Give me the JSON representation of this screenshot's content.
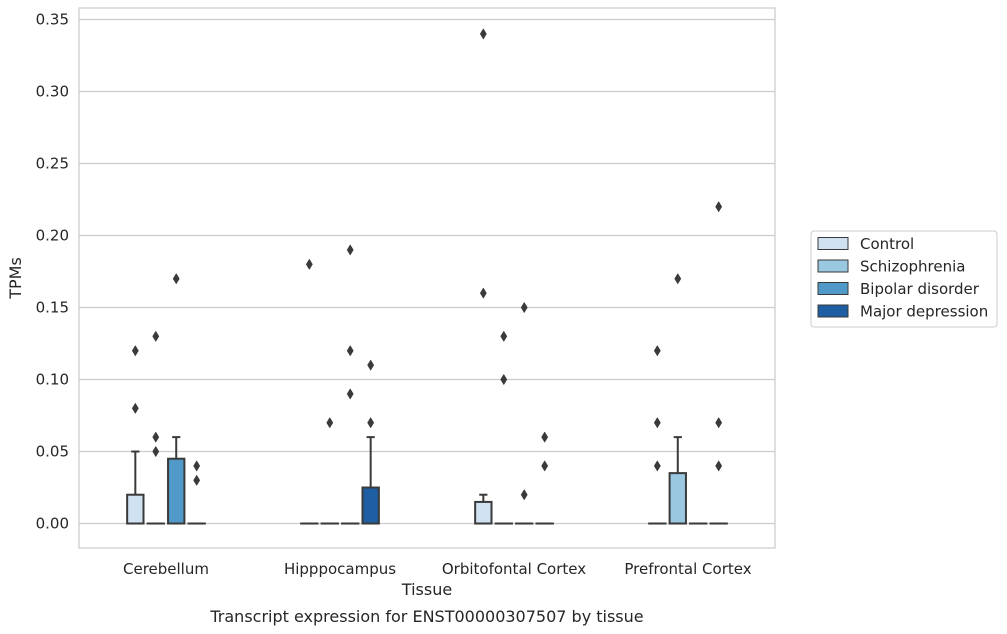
{
  "chart_data": {
    "type": "box",
    "xlabel": "Tissue",
    "ylabel": "TPMs",
    "caption": "Transcript expression for ENST00000307507 by tissue",
    "ylim": [
      -0.017,
      0.358
    ],
    "yticks": [
      "0.00",
      "0.05",
      "0.10",
      "0.15",
      "0.20",
      "0.25",
      "0.30",
      "0.35"
    ],
    "grid": "horizontal",
    "legend_placement": "right",
    "categories": [
      "Cerebellum",
      "Hipppocampus",
      "Orbitofontal Cortex",
      "Prefrontal Cortex"
    ],
    "series": [
      {
        "name": "Control",
        "color": "#d0e1f2",
        "boxes": [
          {
            "q1": 0.0,
            "median": 0.0,
            "q3": 0.02,
            "whisker_low": 0.0,
            "whisker_high": 0.05,
            "outliers": [
              0.08,
              0.12
            ]
          },
          {
            "q1": 0.0,
            "median": 0.0,
            "q3": 0.0,
            "whisker_low": 0.0,
            "whisker_high": 0.0,
            "outliers": [
              0.18
            ]
          },
          {
            "q1": 0.0,
            "median": 0.0,
            "q3": 0.015,
            "whisker_low": 0.0,
            "whisker_high": 0.02,
            "outliers": [
              0.16,
              0.34
            ]
          },
          {
            "q1": 0.0,
            "median": 0.0,
            "q3": 0.0,
            "whisker_low": 0.0,
            "whisker_high": 0.0,
            "outliers": [
              0.04,
              0.07,
              0.12
            ]
          }
        ]
      },
      {
        "name": "Schizophrenia",
        "color": "#9ac8e0",
        "boxes": [
          {
            "q1": 0.0,
            "median": 0.0,
            "q3": 0.0,
            "whisker_low": 0.0,
            "whisker_high": 0.0,
            "outliers": [
              0.05,
              0.06,
              0.13
            ]
          },
          {
            "q1": 0.0,
            "median": 0.0,
            "q3": 0.0,
            "whisker_low": 0.0,
            "whisker_high": 0.0,
            "outliers": [
              0.07
            ]
          },
          {
            "q1": 0.0,
            "median": 0.0,
            "q3": 0.0,
            "whisker_low": 0.0,
            "whisker_high": 0.0,
            "outliers": [
              0.1,
              0.13
            ]
          },
          {
            "q1": 0.0,
            "median": 0.0,
            "q3": 0.035,
            "whisker_low": 0.0,
            "whisker_high": 0.06,
            "outliers": [
              0.17
            ]
          }
        ]
      },
      {
        "name": "Bipolar disorder",
        "color": "#5199c8",
        "boxes": [
          {
            "q1": 0.0,
            "median": 0.0,
            "q3": 0.045,
            "whisker_low": 0.0,
            "whisker_high": 0.06,
            "outliers": [
              0.17
            ]
          },
          {
            "q1": 0.0,
            "median": 0.0,
            "q3": 0.0,
            "whisker_low": 0.0,
            "whisker_high": 0.0,
            "outliers": [
              0.09,
              0.12,
              0.19
            ]
          },
          {
            "q1": 0.0,
            "median": 0.0,
            "q3": 0.0,
            "whisker_low": 0.0,
            "whisker_high": 0.0,
            "outliers": [
              0.02,
              0.15
            ]
          },
          {
            "q1": 0.0,
            "median": 0.0,
            "q3": 0.0,
            "whisker_low": 0.0,
            "whisker_high": 0.0,
            "outliers": []
          }
        ]
      },
      {
        "name": "Major depression",
        "color": "#1e5fa3",
        "boxes": [
          {
            "q1": 0.0,
            "median": 0.0,
            "q3": 0.0,
            "whisker_low": 0.0,
            "whisker_high": 0.0,
            "outliers": [
              0.03,
              0.04
            ]
          },
          {
            "q1": 0.0,
            "median": 0.0,
            "q3": 0.025,
            "whisker_low": 0.0,
            "whisker_high": 0.06,
            "outliers": [
              0.07,
              0.11
            ]
          },
          {
            "q1": 0.0,
            "median": 0.0,
            "q3": 0.0,
            "whisker_low": 0.0,
            "whisker_high": 0.0,
            "outliers": [
              0.04,
              0.06
            ]
          },
          {
            "q1": 0.0,
            "median": 0.0,
            "q3": 0.0,
            "whisker_low": 0.0,
            "whisker_high": 0.0,
            "outliers": [
              0.04,
              0.07,
              0.22
            ]
          }
        ]
      }
    ]
  }
}
